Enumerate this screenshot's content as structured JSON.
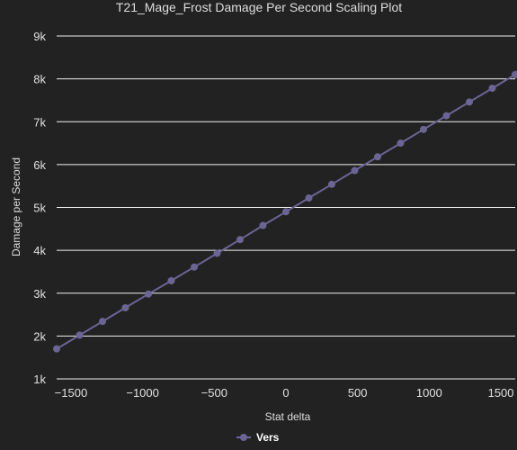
{
  "chart_data": {
    "type": "line",
    "title": "T21_Mage_Frost Damage Per Second Scaling Plot",
    "xlabel": "Stat delta",
    "ylabel": "Damage per Second",
    "xlim": [
      -1600,
      1600
    ],
    "ylim": [
      1000,
      9000
    ],
    "x_ticks": [
      -1500,
      -1000,
      -500,
      0,
      500,
      1000,
      1500
    ],
    "x_tick_labels": [
      "−1500",
      "−1000",
      "−500",
      "0",
      "500",
      "1000",
      "1500"
    ],
    "y_ticks": [
      1000,
      2000,
      3000,
      4000,
      5000,
      6000,
      7000,
      8000,
      9000
    ],
    "y_tick_labels": [
      "1k",
      "2k",
      "3k",
      "4k",
      "5k",
      "6k",
      "7k",
      "8k",
      "9k"
    ],
    "grid": true,
    "legend_position": "bottom-center",
    "series": [
      {
        "name": "Vers",
        "color": "#6b6596",
        "x": [
          -1600,
          -1440,
          -1280,
          -1120,
          -960,
          -800,
          -640,
          -480,
          -320,
          -160,
          0,
          160,
          320,
          480,
          640,
          800,
          960,
          1120,
          1280,
          1440,
          1600
        ],
        "values": [
          1700,
          2020,
          2340,
          2660,
          2980,
          3290,
          3610,
          3930,
          4250,
          4580,
          4900,
          5220,
          5540,
          5860,
          6180,
          6500,
          6820,
          7140,
          7460,
          7780,
          8100
        ]
      }
    ]
  }
}
